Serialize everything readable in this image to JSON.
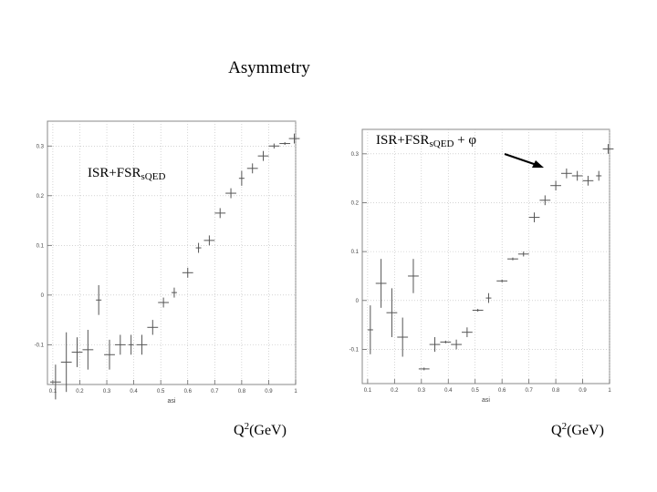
{
  "slide": {
    "title": "Asymmetry",
    "left_label": {
      "main": "ISR+FSR",
      "sub": "sQED"
    },
    "right_label": {
      "main": "ISR+FSR",
      "sub": "sQED",
      "suffix": " + φ"
    },
    "xaxis_left": {
      "main": "Q",
      "sup": "2",
      "rest": "(GeV)"
    },
    "xaxis_right": {
      "main": "Q",
      "sup": "2",
      "rest": "(GeV)"
    }
  },
  "chart_data": [
    {
      "type": "scatter",
      "error_bars": true,
      "xlabel": "asi",
      "xlim": [
        0.08,
        1.0
      ],
      "ylim": [
        -0.18,
        0.35
      ],
      "xticks": [
        "0.1",
        "0.2",
        "0.3",
        "0.4",
        "0.5",
        "0.6",
        "0.7",
        "0.8",
        "0.9",
        "1"
      ],
      "yticks": [
        -0.1,
        0,
        0.1,
        0.2,
        0.3
      ],
      "ytick_labels": [
        "-0.1",
        "0",
        "0.1",
        "0.2",
        "0.3"
      ],
      "grid": true,
      "points": [
        {
          "x": 0.11,
          "y": -0.175,
          "ex": 0.02,
          "ey": 0.035
        },
        {
          "x": 0.15,
          "y": -0.135,
          "ex": 0.02,
          "ey": 0.06
        },
        {
          "x": 0.19,
          "y": -0.115,
          "ex": 0.02,
          "ey": 0.03
        },
        {
          "x": 0.23,
          "y": -0.11,
          "ex": 0.02,
          "ey": 0.04
        },
        {
          "x": 0.27,
          "y": -0.01,
          "ex": 0.0,
          "ey": 0.03
        },
        {
          "x": 0.31,
          "y": -0.12,
          "ex": 0.02,
          "ey": 0.03
        },
        {
          "x": 0.35,
          "y": -0.1,
          "ex": 0.02,
          "ey": 0.02
        },
        {
          "x": 0.39,
          "y": -0.1,
          "ex": 0.0,
          "ey": 0.02
        },
        {
          "x": 0.43,
          "y": -0.1,
          "ex": 0.02,
          "ey": 0.02
        },
        {
          "x": 0.47,
          "y": -0.065,
          "ex": 0.02,
          "ey": 0.015
        },
        {
          "x": 0.51,
          "y": -0.015,
          "ex": 0.02,
          "ey": 0.01
        },
        {
          "x": 0.55,
          "y": 0.005,
          "ex": 0.0,
          "ey": 0.01
        },
        {
          "x": 0.6,
          "y": 0.045,
          "ex": 0.02,
          "ey": 0.01
        },
        {
          "x": 0.64,
          "y": 0.095,
          "ex": 0.0,
          "ey": 0.01
        },
        {
          "x": 0.68,
          "y": 0.11,
          "ex": 0.02,
          "ey": 0.01
        },
        {
          "x": 0.72,
          "y": 0.165,
          "ex": 0.02,
          "ey": 0.01
        },
        {
          "x": 0.76,
          "y": 0.205,
          "ex": 0.02,
          "ey": 0.01
        },
        {
          "x": 0.8,
          "y": 0.235,
          "ex": 0.0,
          "ey": 0.015
        },
        {
          "x": 0.84,
          "y": 0.255,
          "ex": 0.02,
          "ey": 0.01
        },
        {
          "x": 0.88,
          "y": 0.28,
          "ex": 0.02,
          "ey": 0.01
        },
        {
          "x": 0.92,
          "y": 0.3,
          "ex": 0.02,
          "ey": 0.005
        },
        {
          "x": 0.96,
          "y": 0.305,
          "ex": 0.02,
          "ey": 0.0
        },
        {
          "x": 0.995,
          "y": 0.315,
          "ex": 0.02,
          "ey": 0.01
        }
      ]
    },
    {
      "type": "scatter",
      "error_bars": true,
      "xlabel": "asi",
      "xlim": [
        0.08,
        1.0
      ],
      "ylim": [
        -0.17,
        0.35
      ],
      "xticks": [
        "0.1",
        "0.2",
        "0.3",
        "0.4",
        "0.5",
        "0.6",
        "0.7",
        "0.8",
        "0.9",
        "1"
      ],
      "yticks": [
        -0.1,
        0,
        0.1,
        0.2,
        0.3
      ],
      "ytick_labels": [
        "-0.1",
        "0",
        "0.1",
        "0.2",
        "0.3"
      ],
      "grid": true,
      "annotation_arrow": true,
      "points": [
        {
          "x": 0.11,
          "y": -0.06,
          "ex": 0.0,
          "ey": 0.05
        },
        {
          "x": 0.15,
          "y": 0.035,
          "ex": 0.02,
          "ey": 0.05
        },
        {
          "x": 0.19,
          "y": -0.025,
          "ex": 0.02,
          "ey": 0.05
        },
        {
          "x": 0.23,
          "y": -0.075,
          "ex": 0.02,
          "ey": 0.04
        },
        {
          "x": 0.27,
          "y": 0.05,
          "ex": 0.02,
          "ey": 0.035
        },
        {
          "x": 0.31,
          "y": -0.14,
          "ex": 0.02,
          "ey": 0.0
        },
        {
          "x": 0.35,
          "y": -0.09,
          "ex": 0.02,
          "ey": 0.015
        },
        {
          "x": 0.39,
          "y": -0.085,
          "ex": 0.02,
          "ey": 0.0
        },
        {
          "x": 0.43,
          "y": -0.09,
          "ex": 0.02,
          "ey": 0.01
        },
        {
          "x": 0.47,
          "y": -0.065,
          "ex": 0.02,
          "ey": 0.01
        },
        {
          "x": 0.51,
          "y": -0.02,
          "ex": 0.02,
          "ey": 0.0
        },
        {
          "x": 0.55,
          "y": 0.005,
          "ex": 0.0,
          "ey": 0.01
        },
        {
          "x": 0.6,
          "y": 0.04,
          "ex": 0.02,
          "ey": 0.0
        },
        {
          "x": 0.64,
          "y": 0.085,
          "ex": 0.02,
          "ey": 0.0
        },
        {
          "x": 0.68,
          "y": 0.095,
          "ex": 0.02,
          "ey": 0.005
        },
        {
          "x": 0.72,
          "y": 0.17,
          "ex": 0.02,
          "ey": 0.01
        },
        {
          "x": 0.76,
          "y": 0.205,
          "ex": 0.02,
          "ey": 0.01
        },
        {
          "x": 0.8,
          "y": 0.235,
          "ex": 0.02,
          "ey": 0.01
        },
        {
          "x": 0.84,
          "y": 0.26,
          "ex": 0.02,
          "ey": 0.01
        },
        {
          "x": 0.88,
          "y": 0.255,
          "ex": 0.02,
          "ey": 0.01
        },
        {
          "x": 0.92,
          "y": 0.245,
          "ex": 0.02,
          "ey": 0.01
        },
        {
          "x": 0.96,
          "y": 0.255,
          "ex": 0.0,
          "ey": 0.01
        },
        {
          "x": 0.995,
          "y": 0.31,
          "ex": 0.02,
          "ey": 0.01
        }
      ]
    }
  ]
}
